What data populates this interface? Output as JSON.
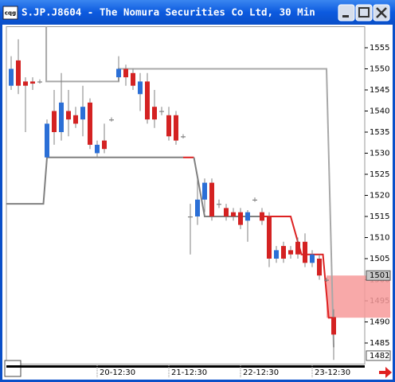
{
  "chart_data": {
    "type": "candlestick",
    "window_icon": "cqg",
    "title": "S.JP.J8604 - The Nomura Securities Co Ltd, 30 Min",
    "categories": [
      null,
      null,
      null,
      null,
      null,
      null,
      null,
      null,
      null,
      null,
      null,
      null,
      "20-12:30",
      null,
      null,
      null,
      null,
      null,
      null,
      null,
      null,
      null,
      "21-12:30",
      null,
      null,
      null,
      null,
      null,
      null,
      null,
      null,
      null,
      "22-12:30",
      null,
      null,
      null,
      null,
      null,
      null,
      null,
      null,
      null,
      "23-12:30",
      null,
      null,
      null
    ],
    "open": [
      1546,
      1552,
      1547,
      1547,
      1547,
      1529,
      1540,
      1535,
      1540,
      1539,
      1538,
      1542,
      1530,
      1533,
      1538,
      1548,
      1550,
      1549,
      1544,
      1547,
      1541,
      1540,
      1539,
      1539,
      1534,
      1515,
      1515,
      1519,
      1523,
      1518,
      1517,
      1516,
      1516,
      1514,
      1519,
      1516,
      1515,
      1505,
      1508,
      1507,
      1509,
      1509,
      1504,
      1505,
      1500,
      1491
    ],
    "high": [
      1553,
      1557,
      1548,
      1548,
      1547.5,
      1538,
      1545,
      1549,
      1545,
      1541,
      1546,
      1543,
      1533,
      1537,
      1538.5,
      1553,
      1551,
      1550,
      1549,
      1549,
      1545,
      1541,
      1541,
      1540,
      1534.5,
      1518,
      1525,
      1524,
      1524,
      1519,
      1518,
      1517,
      1517,
      1516.5,
      1519.5,
      1517,
      1516,
      1508,
      1509,
      1508,
      1510,
      1511,
      1507,
      1506,
      1500.5,
      1493
    ],
    "low": [
      1545,
      1544,
      1535,
      1545,
      1546.5,
      1528,
      1532,
      1533,
      1534,
      1536,
      1534,
      1531,
      1529,
      1530,
      1537.5,
      1547,
      1546,
      1545,
      1540,
      1537,
      1536,
      1539,
      1533,
      1532,
      1533.5,
      1506,
      1513,
      1516,
      1514,
      1517,
      1514,
      1514,
      1512,
      1509,
      1518.5,
      1513,
      1503,
      1504,
      1504,
      1505,
      1505,
      1503,
      1503,
      1500,
      1499.5,
      1481
    ],
    "close": [
      1550,
      1546,
      1546,
      1546.5,
      1547,
      1537,
      1535,
      1542,
      1538,
      1537,
      1541,
      1532,
      1532,
      1531,
      1538,
      1550,
      1548,
      1546,
      1547,
      1538,
      1538,
      1540,
      1534,
      1533,
      1534,
      1515,
      1519,
      1523,
      1515,
      1518,
      1515,
      1515,
      1513,
      1516,
      1519,
      1514,
      1505,
      1507,
      1505,
      1506,
      1506,
      1504,
      1506,
      1501,
      1500,
      1487
    ],
    "up_color": "#2b6fd6",
    "down_color": "#d42222",
    "wick_color": "#808080",
    "lines": [
      {
        "color": "#a8a8a8",
        "x": [
          4.9,
          4.9,
          15,
          15,
          44,
          45
        ],
        "values": [
          1560,
          1547,
          1547,
          1550,
          1550,
          1484
        ]
      },
      {
        "color": "#808080",
        "x": [
          -0.7,
          4.5,
          5,
          24
        ],
        "values": [
          1518,
          1518,
          1529,
          1529
        ]
      },
      {
        "color": "#dd2222",
        "x": [
          24,
          25.5
        ],
        "values": [
          1529,
          1529
        ]
      },
      {
        "color": "#808080",
        "x": [
          25.5,
          27,
          35
        ],
        "values": [
          1529,
          1515,
          1515
        ]
      },
      {
        "color": "#dd2222",
        "x": [
          35,
          39,
          40.5,
          43.5,
          44.3,
          45.3
        ],
        "values": [
          1515,
          1515,
          1506,
          1506,
          1491,
          1491
        ]
      }
    ],
    "zone": {
      "from": 1491,
      "to": 1501,
      "x_from": 44,
      "color": "#f79a9a"
    },
    "price_markers": [
      1501,
      1482
    ],
    "ylim": [
      1480,
      1560
    ],
    "yticks": [
      1485,
      1490,
      1495,
      1500,
      1505,
      1510,
      1515,
      1520,
      1525,
      1530,
      1535,
      1540,
      1545,
      1550,
      1555
    ],
    "grid": false
  }
}
